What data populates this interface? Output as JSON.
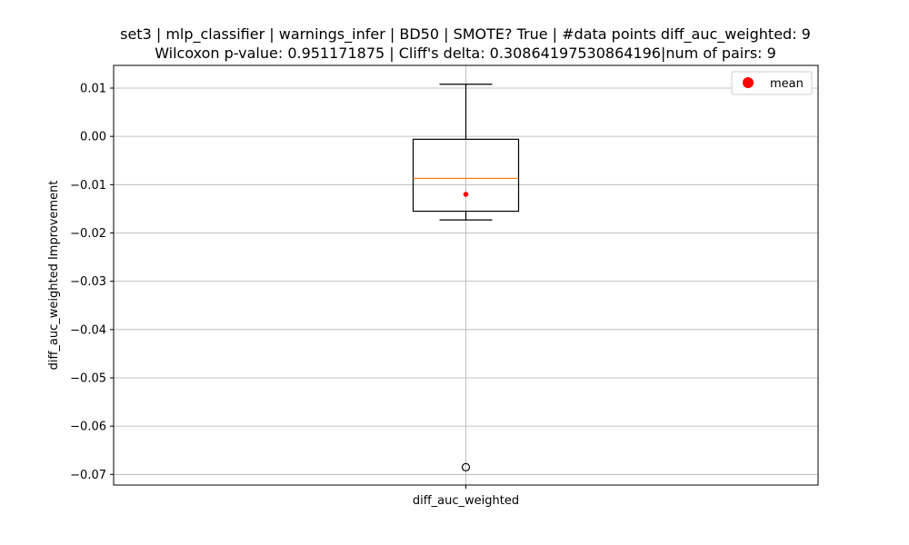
{
  "chart_data": {
    "type": "box",
    "title": "set3 | mlp_classifier | warnings_infer | BD50 | SMOTE? True | #data points diff_auc_weighted: 9",
    "subtitle": "Wilcoxon p-value: 0.951171875 | Cliff's delta: 0.30864197530864196|num of pairs: 9",
    "xlabel": "",
    "ylabel": "diff_auc_weighted Improvement",
    "categories": [
      "diff_auc_weighted"
    ],
    "ylim": [
      -0.0722,
      0.0147
    ],
    "yticks": [
      0.01,
      0.0,
      -0.01,
      -0.02,
      -0.03,
      -0.04,
      -0.05,
      -0.06,
      -0.07
    ],
    "ytick_labels": [
      "0.01",
      "0.00",
      "−0.01",
      "−0.02",
      "−0.03",
      "−0.04",
      "−0.05",
      "−0.06",
      "−0.07"
    ],
    "grid": true,
    "legend": {
      "position": "top-right",
      "entries": [
        "mean"
      ]
    },
    "boxes": [
      {
        "category": "diff_auc_weighted",
        "whisker_high": 0.0108,
        "q3": -0.0006,
        "median": -0.0087,
        "q1": -0.0155,
        "whisker_low": -0.0173,
        "mean": -0.012,
        "outliers": [
          -0.0685
        ]
      }
    ],
    "colors": {
      "box": "#000000",
      "median": "#ff7f0e",
      "mean": "#ff0000",
      "grid": "#b0b0b0"
    }
  }
}
